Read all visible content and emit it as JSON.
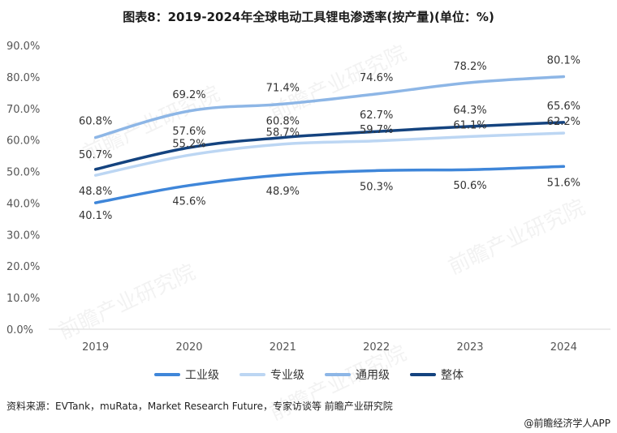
{
  "chart_data": {
    "type": "line",
    "title": "图表8：2019-2024年全球电动工具锂电渗透率(按产量)(单位：%)",
    "x": [
      "2019",
      "2020",
      "2021",
      "2022",
      "2023",
      "2024"
    ],
    "ylim": [
      0,
      90
    ],
    "yticks": [
      0,
      10,
      20,
      30,
      40,
      50,
      60,
      70,
      80,
      90
    ],
    "ytick_labels": [
      "0.0%",
      "10.0%",
      "20.0%",
      "30.0%",
      "40.0%",
      "50.0%",
      "60.0%",
      "70.0%",
      "80.0%",
      "90.0%"
    ],
    "grid": false,
    "legend_position": "bottom-center",
    "series": [
      {
        "name": "工业级",
        "color": "#3f86d9",
        "values": [
          40.1,
          45.6,
          48.9,
          50.3,
          50.6,
          51.6
        ],
        "labels": [
          "40.1%",
          "45.6%",
          "48.9%",
          "50.3%",
          "50.6%",
          "51.6%"
        ]
      },
      {
        "name": "专业级",
        "color": "#bcd6f3",
        "values": [
          48.8,
          55.2,
          58.7,
          59.7,
          61.1,
          62.2
        ],
        "labels": [
          "48.8%",
          "55.2%",
          "58.7%",
          "59.7%",
          "61.1%",
          "62.2%"
        ]
      },
      {
        "name": "通用级",
        "color": "#8db6e6",
        "values": [
          60.8,
          69.2,
          71.4,
          74.6,
          78.2,
          80.1
        ],
        "labels": [
          "60.8%",
          "69.2%",
          "71.4%",
          "74.6%",
          "78.2%",
          "80.1%"
        ]
      },
      {
        "name": "整体",
        "color": "#14437f",
        "values": [
          50.7,
          57.6,
          60.8,
          62.7,
          64.3,
          65.6
        ],
        "labels": [
          "50.7%",
          "57.6%",
          "60.8%",
          "62.7%",
          "64.3%",
          "65.6%"
        ]
      }
    ]
  },
  "source": "资料来源：EVTank，muRata，Market Research Future，专家访谈等 前瞻产业研究院",
  "credit": "@前瞻经济学人APP",
  "watermark": "前瞻产业研究院",
  "axis_color": "#d9d9d9"
}
